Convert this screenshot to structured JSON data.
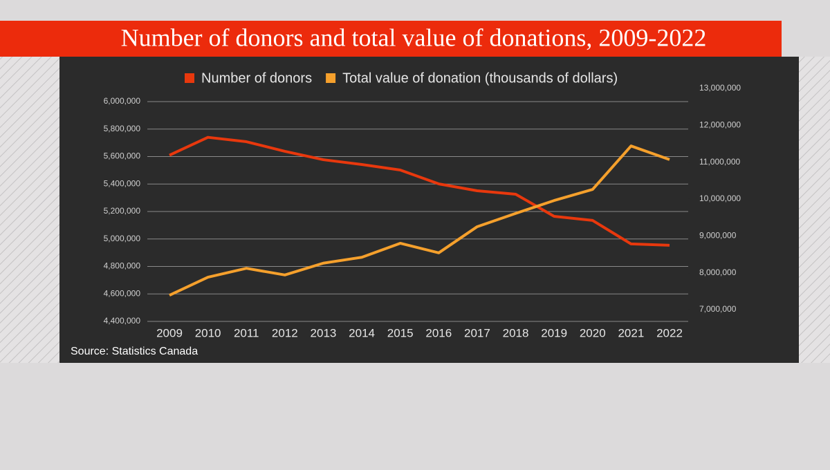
{
  "chart_data": {
    "type": "line",
    "title": "Number of donors and total value of donations, 2009-2022",
    "source": "Source: Statistics Canada",
    "categories": [
      "2009",
      "2010",
      "2011",
      "2012",
      "2013",
      "2014",
      "2015",
      "2016",
      "2017",
      "2018",
      "2019",
      "2020",
      "2021",
      "2022"
    ],
    "series": [
      {
        "name": "Number of donors",
        "color": "#e8380d",
        "values": [
          5610000,
          5740000,
          5708000,
          5638000,
          5577000,
          5542000,
          5502000,
          5401000,
          5351000,
          5326000,
          5165000,
          5135000,
          4964000,
          4954000
        ]
      },
      {
        "name": "Total value of donation (thousands of dollars)",
        "color": "#f5a02c",
        "axis": "y2",
        "values": [
          7390000,
          7880000,
          8120000,
          7940000,
          8260000,
          8420000,
          8800000,
          8540000,
          9250000,
          9610000,
          9960000,
          10260000,
          11440000,
          11070000
        ]
      }
    ],
    "ylim": [
      4400000,
      6000000
    ],
    "yticks": [
      {
        "value": 4400000,
        "label": "4,400,000"
      },
      {
        "value": 4600000,
        "label": "4,600,000"
      },
      {
        "value": 4800000,
        "label": "4,800,000"
      },
      {
        "value": 5000000,
        "label": "5,000,000"
      },
      {
        "value": 5200000,
        "label": "5,200,000"
      },
      {
        "value": 5400000,
        "label": "5,400,000"
      },
      {
        "value": 5600000,
        "label": "5,600,000"
      },
      {
        "value": 5800000,
        "label": "5,800,000"
      },
      {
        "value": 6000000,
        "label": "6,000,000"
      }
    ],
    "y2lim": [
      6680000,
      13000000
    ],
    "y2ticks": [
      {
        "value": 7000000,
        "label": "7,000,000"
      },
      {
        "value": 8000000,
        "label": "8,000,000"
      },
      {
        "value": 9000000,
        "label": "9,000,000"
      },
      {
        "value": 10000000,
        "label": "10,000,000"
      },
      {
        "value": 11000000,
        "label": "11,000,000"
      },
      {
        "value": 12000000,
        "label": "12,000,000"
      },
      {
        "value": 13000000,
        "label": "13,000,000"
      }
    ],
    "grid": true
  }
}
